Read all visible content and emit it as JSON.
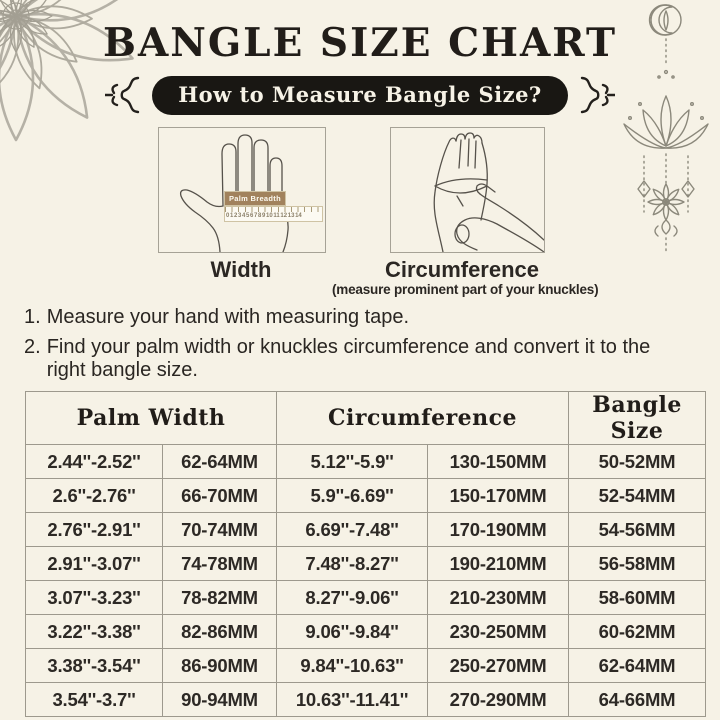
{
  "header": {
    "title": "BANGLE SIZE CHART",
    "banner_label": "How to Measure Bangle Size?"
  },
  "measure": {
    "width": {
      "caption": "Width",
      "tape_label": "Palm Breadth",
      "ruler_numbers": "0 1 2 3 4 5 6 7 8 9 10 11 12 13 14"
    },
    "circumference": {
      "caption": "Circumference",
      "subcaption": "(measure prominent part of your knuckles)"
    }
  },
  "instructions": [
    {
      "number": "1.",
      "text": "Measure your hand with measuring tape."
    },
    {
      "number": "2.",
      "text": "Find your palm width or knuckles circumference and convert it to the right bangle size."
    }
  ],
  "table": {
    "headers": [
      "Palm Width",
      "Circumference",
      "Bangle Size"
    ],
    "rows": [
      [
        "2.44''-2.52''",
        "62-64MM",
        "5.12''-5.9''",
        "130-150MM",
        "50-52MM"
      ],
      [
        "2.6''-2.76''",
        "66-70MM",
        "5.9''-6.69''",
        "150-170MM",
        "52-54MM"
      ],
      [
        "2.76''-2.91''",
        "70-74MM",
        "6.69''-7.48''",
        "170-190MM",
        "54-56MM"
      ],
      [
        "2.91''-3.07''",
        "74-78MM",
        "7.48''-8.27''",
        "190-210MM",
        "56-58MM"
      ],
      [
        "3.07''-3.23''",
        "78-82MM",
        "8.27''-9.06''",
        "210-230MM",
        "58-60MM"
      ],
      [
        "3.22''-3.38''",
        "82-86MM",
        "9.06''-9.84''",
        "230-250MM",
        "60-62MM"
      ],
      [
        "3.38''-3.54''",
        "86-90MM",
        "9.84''-10.63''",
        "250-270MM",
        "62-64MM"
      ],
      [
        "3.54''-3.7''",
        "90-94MM",
        "10.63''-11.41''",
        "270-290MM",
        "64-66MM"
      ]
    ]
  },
  "decorations": {
    "top_left": "mandala-flower",
    "top_right": "lotus-hanging-ornament",
    "banner_sides": "curly-flourish"
  },
  "colors": {
    "background": "#f6f2e6",
    "ink": "#211d19",
    "banner_bg": "#191713",
    "banner_text": "#f6f2e6",
    "tape_brown": "#a1825d",
    "table_border": "#9d998d",
    "ornament_gray": "#b5b1a6"
  }
}
